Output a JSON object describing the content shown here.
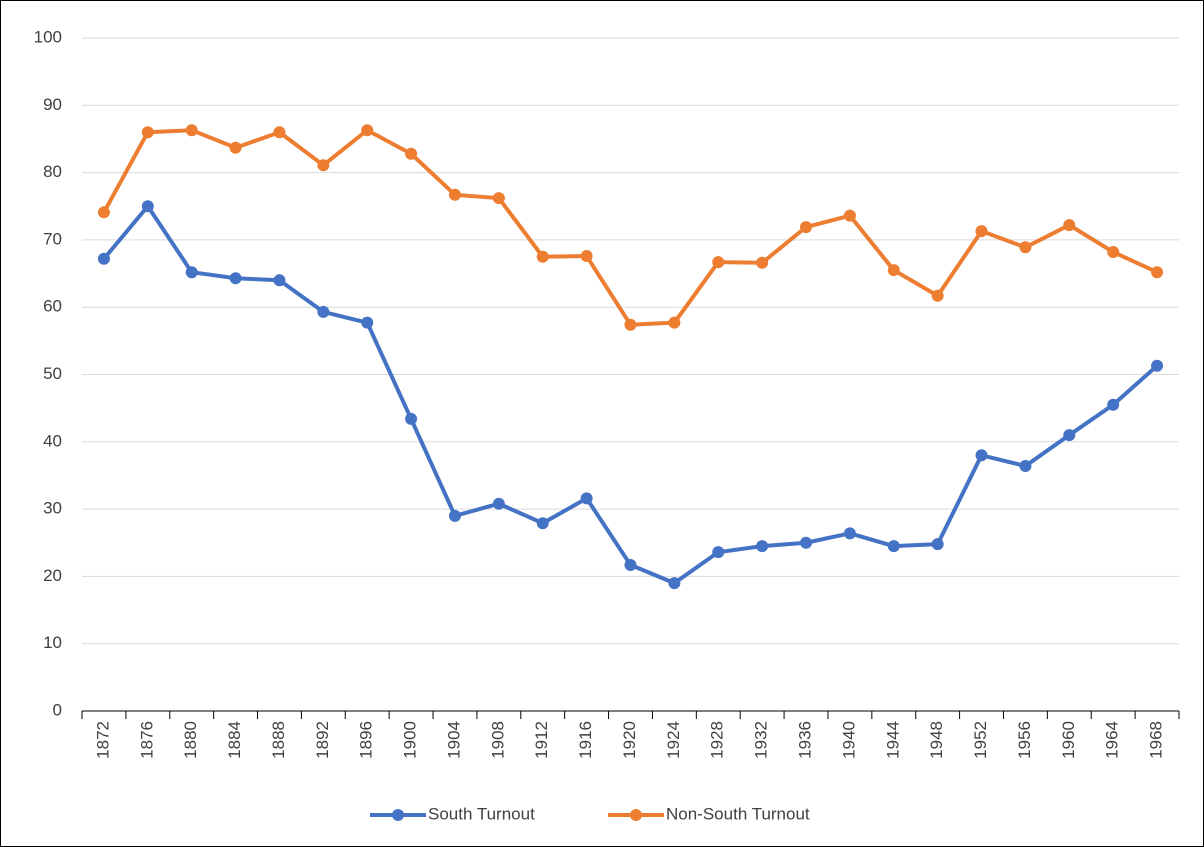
{
  "chart_data": {
    "type": "line",
    "categories": [
      "1872",
      "1876",
      "1880",
      "1884",
      "1888",
      "1892",
      "1896",
      "1900",
      "1904",
      "1908",
      "1912",
      "1916",
      "1920",
      "1924",
      "1928",
      "1932",
      "1936",
      "1940",
      "1944",
      "1948",
      "1952",
      "1956",
      "1960",
      "1964",
      "1968"
    ],
    "series": [
      {
        "name": "South Turnout",
        "color": "#4472c4",
        "values": [
          67.2,
          75.0,
          65.2,
          64.3,
          64.0,
          59.3,
          57.7,
          43.4,
          29.0,
          30.8,
          27.9,
          31.6,
          21.7,
          19.0,
          23.6,
          24.5,
          25.0,
          26.4,
          24.5,
          24.8,
          38.0,
          36.4,
          41.0,
          45.5,
          51.3
        ]
      },
      {
        "name": "Non-South Turnout",
        "color": "#ed7d31",
        "values": [
          74.1,
          86.0,
          86.3,
          83.7,
          86.0,
          81.1,
          86.3,
          82.8,
          76.7,
          76.2,
          67.5,
          67.6,
          57.4,
          57.7,
          66.7,
          66.6,
          71.9,
          73.6,
          65.5,
          61.7,
          71.3,
          68.9,
          72.2,
          68.2,
          65.2
        ]
      }
    ],
    "ylim": [
      0,
      100
    ],
    "yticks": [
      0,
      10,
      20,
      30,
      40,
      50,
      60,
      70,
      80,
      90,
      100
    ],
    "grid": true,
    "legend": "bottom"
  }
}
